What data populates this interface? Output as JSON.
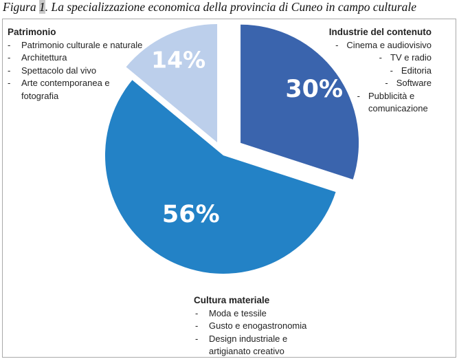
{
  "caption": {
    "prefix": "Figura ",
    "number": "1",
    "rest": ". La specializzazione economica della provincia di Cuneo in campo culturale"
  },
  "chart_data": {
    "type": "pie",
    "title": "Figura 1. La specializzazione economica della provincia di Cuneo in campo culturale",
    "slices": [
      {
        "name": "Industrie del contenuto",
        "value": 30,
        "label": "30%",
        "color": "#3a64ad"
      },
      {
        "name": "Cultura materiale",
        "value": 56,
        "label": "56%",
        "color": "#2382c6"
      },
      {
        "name": "Patrimonio",
        "value": 14,
        "label": "14%",
        "color": "#bccfeb"
      }
    ]
  },
  "groups": {
    "patrimonio": {
      "title": "Patrimonio",
      "items": [
        "Patrimonio culturale e naturale",
        "Architettura",
        "Spettacolo dal vivo",
        "Arte contemporanea e fotografia"
      ]
    },
    "industrie": {
      "title": "Industrie del contenuto",
      "items": [
        "Cinema e audiovisivo",
        "TV e radio",
        "Editoria",
        "Software",
        "Pubblicità e comunicazione"
      ]
    },
    "cultura": {
      "title": "Cultura materiale",
      "items": [
        "Moda e tessile",
        "Gusto e enogastronomia",
        "Design industriale e artigianato creativo"
      ]
    }
  }
}
